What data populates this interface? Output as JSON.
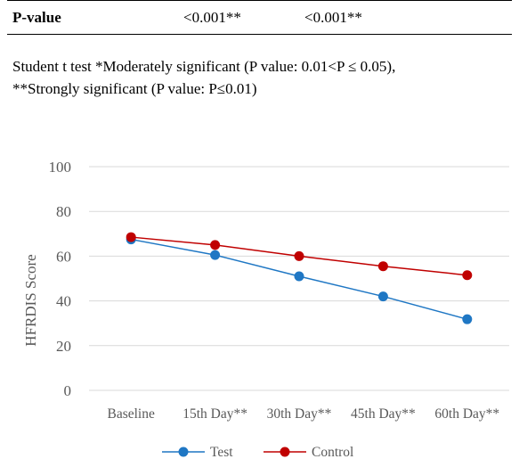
{
  "table": {
    "row_label": "P-value",
    "values": [
      "<0.001**",
      "<0.001**"
    ]
  },
  "footnote": {
    "line1": "Student t test *Moderately significant (P value: 0.01<P ≤ 0.05),",
    "line2": "**Strongly significant (P value: P≤0.01)"
  },
  "chart_data": {
    "type": "line",
    "categories": [
      "Baseline",
      "15th Day**",
      "30th Day**",
      "45th Day**",
      "60th Day**"
    ],
    "series": [
      {
        "name": "Test",
        "color": "#1f77c4",
        "values": [
          67.5,
          60.5,
          51,
          42,
          31.8
        ]
      },
      {
        "name": "Control",
        "color": "#c00000",
        "values": [
          68.5,
          65,
          60,
          55.5,
          51.5
        ]
      }
    ],
    "ylabel": "HFRDIS Score",
    "xlabel": "",
    "ylim": [
      0,
      100
    ],
    "yticks": [
      0,
      20,
      40,
      60,
      80,
      100
    ],
    "grid": true,
    "legend": "bottom"
  }
}
